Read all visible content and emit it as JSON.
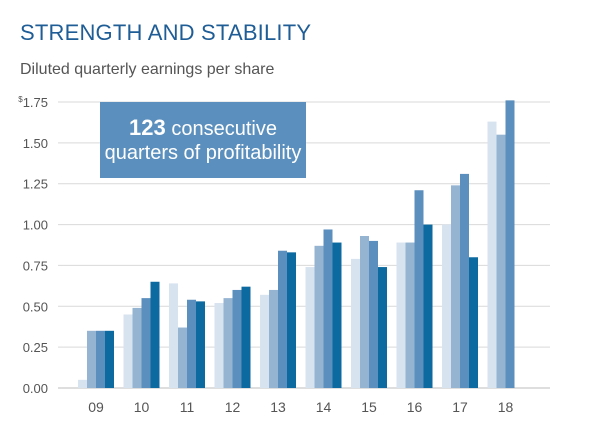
{
  "header": {
    "title": "STRENGTH AND STABILITY",
    "subtitle": "Diluted quarterly earnings per share"
  },
  "callout": {
    "number": "123",
    "text1": " consecutive",
    "text2": "quarters of profitability"
  },
  "colors": {
    "title": "#1f5d96",
    "callout_bg": "#5b8fbd",
    "q1": "#d7e3ef",
    "q2": "#94b4d2",
    "q3": "#5b8fbd",
    "q4": "#0c6aa0",
    "grid": "#d9d9d9",
    "axis_text": "#555555"
  },
  "chart_data": {
    "type": "bar",
    "title": "Diluted quarterly earnings per share",
    "categories": [
      "09",
      "10",
      "11",
      "12",
      "13",
      "14",
      "15",
      "16",
      "17",
      "18"
    ],
    "series": [
      {
        "values": [
          0.05,
          0.45,
          0.64,
          0.52,
          0.57,
          0.74,
          0.79,
          0.89,
          1.0,
          1.63
        ]
      },
      {
        "values": [
          0.35,
          0.49,
          0.37,
          0.55,
          0.6,
          0.87,
          0.93,
          0.89,
          1.24,
          1.55
        ]
      },
      {
        "values": [
          0.35,
          0.55,
          0.54,
          0.6,
          0.84,
          0.97,
          0.9,
          1.21,
          1.31,
          1.76
        ]
      },
      {
        "values": [
          0.35,
          0.65,
          0.53,
          0.62,
          0.83,
          0.89,
          0.74,
          1.0,
          0.8,
          null
        ]
      }
    ],
    "ylim": [
      0,
      1.75
    ],
    "yticks": [
      "$1.75",
      "1.50",
      "1.25",
      "1.00",
      "0.75",
      "0.50",
      "0.25",
      "0.00"
    ],
    "ytick_values": [
      1.75,
      1.5,
      1.25,
      1.0,
      0.75,
      0.5,
      0.25,
      0.0
    ],
    "grid": true
  }
}
